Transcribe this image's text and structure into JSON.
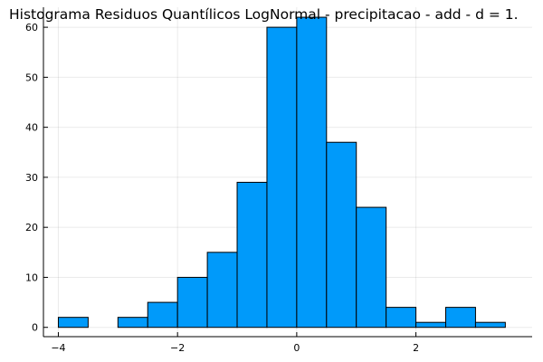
{
  "chart_data": {
    "type": "bar",
    "title": "Histograma Residuos Quantílicos LogNormal - precipitacao - add - d = 1.",
    "xlabel": "",
    "ylabel": "",
    "bin_edges": [
      -4.0,
      -3.5,
      -3.0,
      -2.5,
      -2.0,
      -1.5,
      -1.0,
      -0.5,
      0.0,
      0.5,
      1.0,
      1.5,
      2.0,
      2.5,
      3.0,
      3.5
    ],
    "values": [
      2,
      0,
      2,
      5,
      10,
      15,
      29,
      60,
      62,
      37,
      24,
      4,
      1,
      4,
      1
    ],
    "xlim": [
      -4.25,
      3.95
    ],
    "ylim": [
      -1.86,
      64.0
    ],
    "xticks": [
      -4,
      -2,
      0,
      2
    ],
    "xtick_labels": [
      "−4",
      "−2",
      "0",
      "2"
    ],
    "yticks": [
      0,
      10,
      20,
      30,
      40,
      50,
      60
    ],
    "ytick_labels": [
      "0",
      "10",
      "20",
      "30",
      "40",
      "50",
      "60"
    ],
    "grid": true,
    "legend": "none",
    "bar_color": "#009AFA",
    "bar_edge_color": "#000000"
  }
}
